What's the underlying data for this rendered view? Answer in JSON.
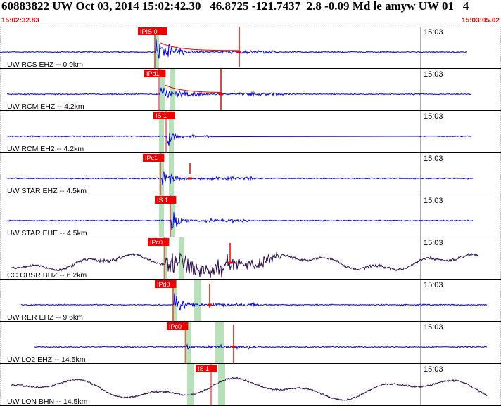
{
  "header": {
    "title": "60883822 UW Oct 03, 2014 15:02:42.30   46.8725 -121.7437  2.8 -0.09 Md le amyw UW 01   4",
    "start_time": "15:02:32.83",
    "end_time": "15:03:05.02"
  },
  "colors": {
    "trace_blue": "#0000dd",
    "trace_dark": "#2a0a4a",
    "pick_red": "#ee0000",
    "shade_green": "#b8e0b8"
  },
  "traces": [
    {
      "label": "UW RCS EHZ -- 0.9km",
      "time": "15:03",
      "pick": "IPIS 0",
      "color": "trace_blue"
    },
    {
      "label": "UW RCM EHZ -- 4.2km",
      "time": "15:03",
      "pick": "IPd1",
      "color": "trace_blue"
    },
    {
      "label": "UW RCM EH2 -- 4.2km",
      "time": "15:03",
      "pick": "IS 1",
      "color": "trace_blue"
    },
    {
      "label": "UW STAR EHZ -- 4.5km",
      "time": "15:03",
      "pick": "IPc1",
      "color": "trace_blue"
    },
    {
      "label": "UW STAR EHE -- 4.5km",
      "time": "15:03",
      "pick": "IS 1",
      "color": "trace_blue"
    },
    {
      "label": "CC OBSR BHZ -- 6.2km",
      "time": "15:03",
      "pick": "IPc0",
      "color": "trace_dark"
    },
    {
      "label": "UW RER EHZ -- 9.6km",
      "time": "15:03",
      "pick": "IPd0",
      "color": "trace_blue"
    },
    {
      "label": "UW LO2 EHZ -- 14.5km",
      "time": "15:03",
      "pick": "IPc0",
      "color": "trace_blue"
    },
    {
      "label": "UW LON BHN -- 14.5km",
      "time": "15:03",
      "pick": "IS 1",
      "color": "trace_dark"
    }
  ]
}
